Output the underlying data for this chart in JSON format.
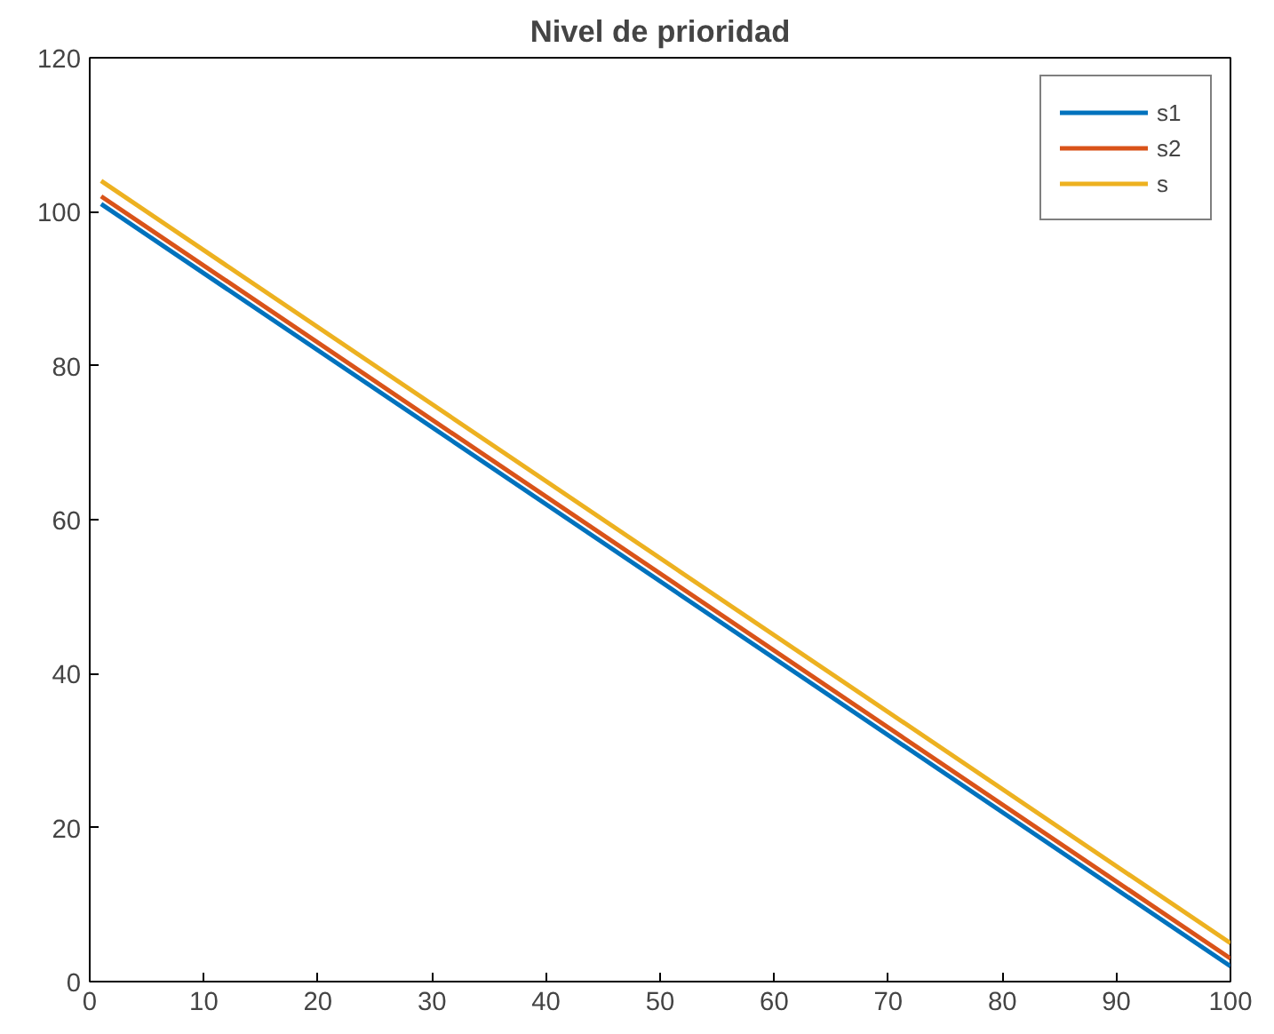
{
  "chart_data": {
    "type": "line",
    "title": "Nivel de prioridad",
    "x": [
      1,
      100
    ],
    "series": [
      {
        "name": "s1",
        "color": "#0072bd",
        "values": [
          101,
          2
        ]
      },
      {
        "name": "s2",
        "color": "#d95319",
        "values": [
          102,
          3
        ]
      },
      {
        "name": "s",
        "color": "#edb120",
        "values": [
          104,
          5
        ]
      }
    ],
    "xlim": [
      0,
      100
    ],
    "ylim": [
      0,
      120
    ],
    "xticks": [
      0,
      10,
      20,
      30,
      40,
      50,
      60,
      70,
      80,
      90,
      100
    ],
    "yticks": [
      0,
      20,
      40,
      60,
      80,
      100,
      120
    ],
    "grid": false,
    "legend": "top right",
    "line_style": "solid"
  }
}
